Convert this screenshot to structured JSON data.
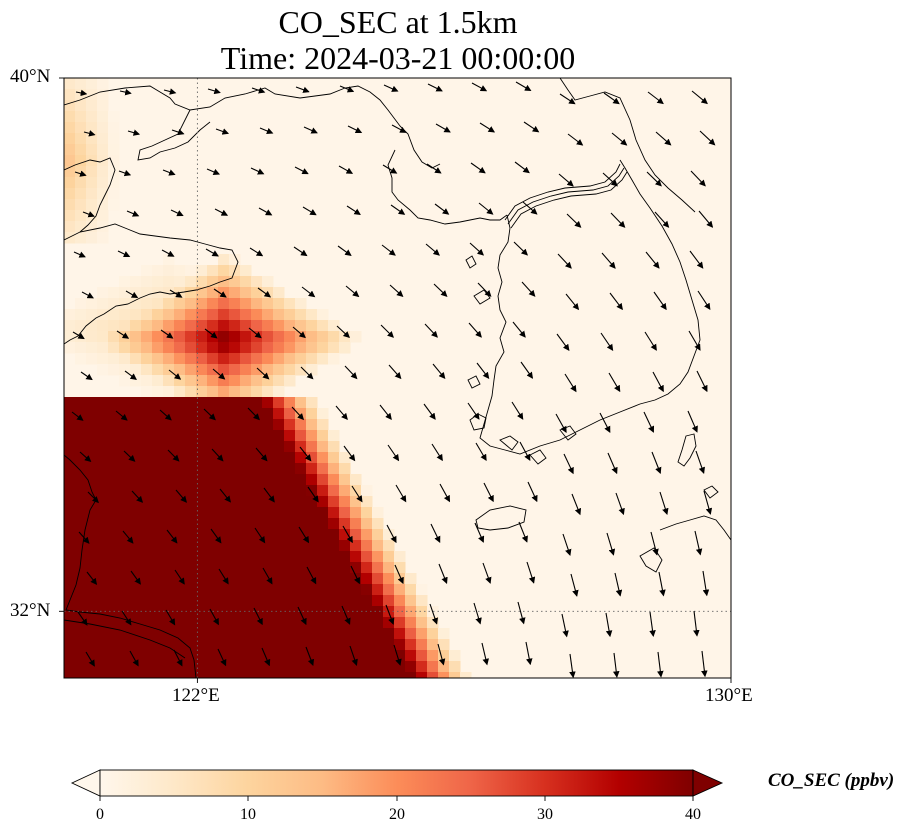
{
  "title": {
    "line1": "CO_SEC at 1.5km",
    "line2": "Time: 2024-03-21 00:00:00"
  },
  "map": {
    "extent": {
      "lon_min": 120,
      "lon_max": 130,
      "lat_min": 31,
      "lat_max": 40
    },
    "lat_labels": [
      "40°N",
      "32°N"
    ],
    "lon_labels": [
      "122°E",
      "130°E"
    ],
    "gridlines": {
      "lon": 122,
      "lat": 32,
      "style": "dotted"
    }
  },
  "colorbar": {
    "label": "CO_SEC (ppbv)",
    "ticks": [
      "0",
      "10",
      "20",
      "30",
      "40"
    ],
    "min": 0,
    "max": 40,
    "extend": "both",
    "colormap": "OrRd",
    "colors": [
      "#fff7ec",
      "#fee8c8",
      "#fdd49e",
      "#fdbb84",
      "#fc8d59",
      "#ef6548",
      "#d7301f",
      "#b30000",
      "#7f0000"
    ]
  },
  "colors": {
    "background": "#fff5e8",
    "coastline": "#000000",
    "vectors": "#000000"
  }
}
